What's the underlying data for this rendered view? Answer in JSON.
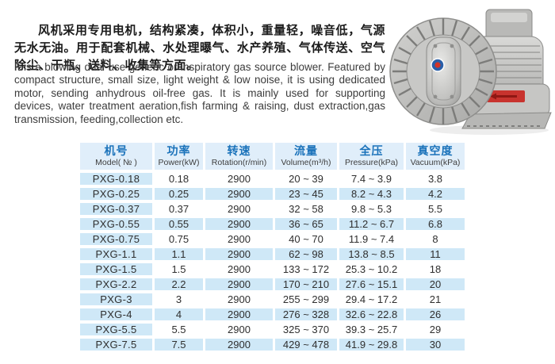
{
  "intro": {
    "zh": "风机采用专用电机，结构紧凑，体积小，重量轻，噪音低，气源无水无油。用于配套机械、水处理曝气、水产养殖、气体传送、空气除尘、干瓶、送料、收集等方面。",
    "en": "It is a blowing dual-use generic or inspiratory gas source blower. Featured by compact structure,  small size, light weight & low noise,  it is using dedicated motor, sending  anhydrous oil-free gas.  It is mainly used for supporting devices, water treatment aeration,fish farming & raising, dust extraction,gas transmission, feeding,collection etc."
  },
  "product_image": {
    "description": "silver ring blower with finned round housing, motor and red arrow label"
  },
  "table": {
    "columns": [
      {
        "zh": "机号",
        "en": "Model( № )"
      },
      {
        "zh": "功率",
        "en": "Power(kW)"
      },
      {
        "zh": "转速",
        "en": "Rotation(r/min)"
      },
      {
        "zh": "流量",
        "en": "Volume(m³/h)"
      },
      {
        "zh": "全压",
        "en": "Pressure(kPa)"
      },
      {
        "zh": "真空度",
        "en": "Vacuum(kPa)"
      }
    ],
    "rows": [
      [
        "PXG-0.18",
        "0.18",
        "2900",
        "20 ~ 39",
        "7.4 ~ 3.9",
        "3.8"
      ],
      [
        "PXG-0.25",
        "0.25",
        "2900",
        "23 ~ 45",
        "8.2 ~ 4.3",
        "4.2"
      ],
      [
        "PXG-0.37",
        "0.37",
        "2900",
        "32 ~ 58",
        "9.8 ~ 5.3",
        "5.5"
      ],
      [
        "PXG-0.55",
        "0.55",
        "2900",
        "36 ~ 65",
        "11.2 ~ 6.7",
        "6.8"
      ],
      [
        "PXG-0.75",
        "0.75",
        "2900",
        "40 ~ 70",
        "11.9 ~ 7.4",
        "8"
      ],
      [
        "PXG-1.1",
        "1.1",
        "2900",
        "62 ~ 98",
        "13.8 ~ 8.5",
        "11"
      ],
      [
        "PXG-1.5",
        "1.5",
        "2900",
        "133 ~ 172",
        "25.3 ~ 10.2",
        "18"
      ],
      [
        "PXG-2.2",
        "2.2",
        "2900",
        "170 ~ 210",
        "27.6 ~ 15.1",
        "20"
      ],
      [
        "PXG-3",
        "3",
        "2900",
        "255 ~ 299",
        "29.4 ~ 17.2",
        "21"
      ],
      [
        "PXG-4",
        "4",
        "2900",
        "276 ~ 328",
        "32.6 ~ 22.8",
        "26"
      ],
      [
        "PXG-5.5",
        "5.5",
        "2900",
        "325 ~ 370",
        "39.3 ~ 25.7",
        "29"
      ],
      [
        "PXG-7.5",
        "7.5",
        "2900",
        "429 ~ 478",
        "41.9 ~ 29.8",
        "30"
      ]
    ]
  },
  "colors": {
    "header_bg": "#e0eefa",
    "header_text_zh": "#1a72ba",
    "row_highlight": "#cfe8f7",
    "label_red": "#c8332e"
  }
}
